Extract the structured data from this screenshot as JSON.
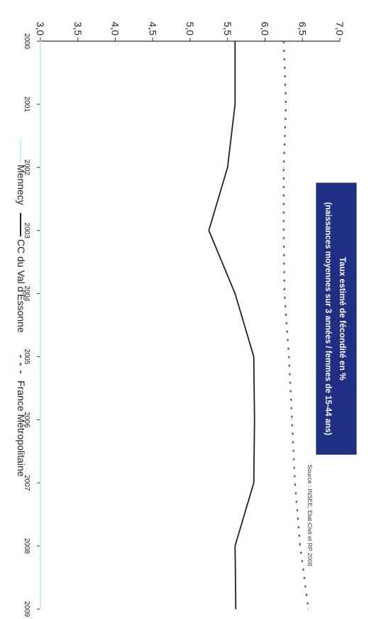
{
  "chart_data": {
    "type": "line",
    "orientation": "rotated-90-clockwise",
    "title": "Taux estimé de fécondité en %",
    "subtitle": "(naissances moyennes sur 3 années / femmes de 15-44 ans)",
    "source": "Source : INSEE, Etat-Civil et RP 2008",
    "x": [
      "2000",
      "2001",
      "2002",
      "2003",
      "2004",
      "2005",
      "2006",
      "2007",
      "2008",
      "2009"
    ],
    "y_ticks": [
      "3,0",
      "3,5",
      "4,0",
      "4,5",
      "5,0",
      "5,5",
      "6,0",
      "6,5",
      "7,0"
    ],
    "ylim": [
      3.0,
      7.0
    ],
    "series": [
      {
        "name": "Mennecy",
        "color": "#cfeef0",
        "style": "solid",
        "values": [
          3.0,
          3.0,
          3.0,
          3.0,
          3.0,
          3.0,
          3.0,
          3.0,
          3.0,
          3.0
        ]
      },
      {
        "name": "CC du Val d'Essonne",
        "color": "#222222",
        "style": "solid",
        "values": [
          5.6,
          5.6,
          5.5,
          5.25,
          5.6,
          5.85,
          5.86,
          5.85,
          5.6,
          5.61
        ]
      },
      {
        "name": "France Métropolitaine",
        "color": "#5a5fa0",
        "style": "dashed",
        "values": [
          6.25,
          6.28,
          6.25,
          6.25,
          6.26,
          6.32,
          6.36,
          6.4,
          6.47,
          6.58
        ]
      }
    ],
    "legend": {
      "position": "bottom",
      "sep": "—"
    },
    "title_bg": "#1f2f83",
    "grid": false
  }
}
